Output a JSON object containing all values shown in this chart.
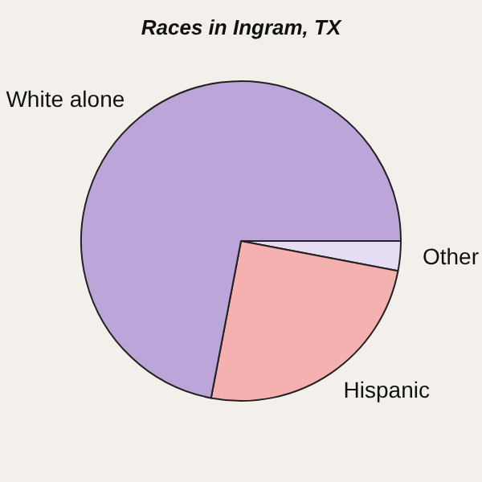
{
  "chart_data": {
    "type": "pie",
    "title": "Races in Ingram, TX",
    "categories": [
      "Other",
      "Hispanic",
      "White alone"
    ],
    "values": [
      3,
      25,
      72
    ],
    "colors": [
      "#e6dcf3",
      "#f5b0b0",
      "#bca6d9"
    ],
    "legend": false
  }
}
